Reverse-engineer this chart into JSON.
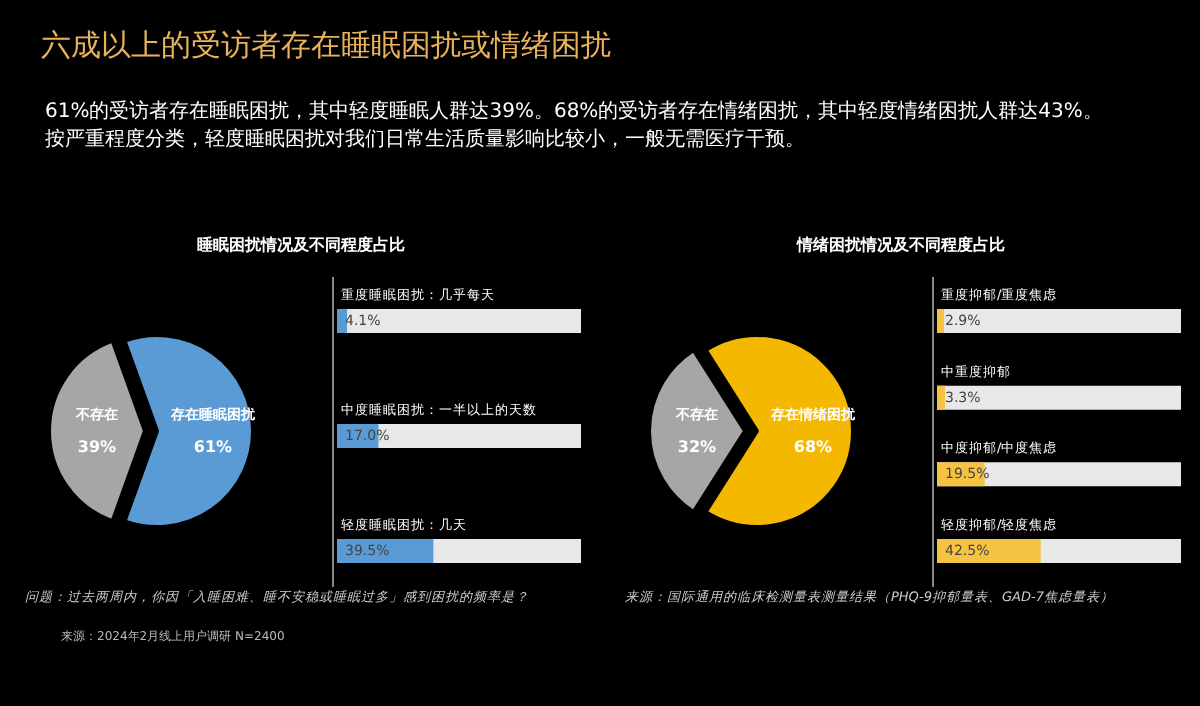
{
  "chart_data": [
    {
      "type": "other",
      "title": "六成以上的受访者存在睡眠困扰或情绪困扰",
      "subtitle": "61%的受访者存在睡眠困扰，其中轻度睡眠人群达39%。68%的受访者存在情绪困扰，其中轻度情绪困扰人群达43%。按严重程度分类，轻度睡眠困扰对我们日常生活质量影响比较小，一般无需医疗干预。",
      "annotations": [
        "来源：2024年2月线上用户调研 N=2400"
      ]
    },
    {
      "type": "pie",
      "title": "睡眠困扰情况及不同程度占比",
      "categories": [
        "不存在",
        "存在睡眠困扰"
      ],
      "values": [
        39,
        61
      ],
      "colors": [
        "#a6a6a6",
        "#5b9bd5"
      ],
      "value_labels": [
        "39%",
        "61%"
      ],
      "annotations": [
        "问题：过去两周内，你因「入睡困难、睡不安稳或睡眠过多」感到困扰的频率是？"
      ]
    },
    {
      "type": "bar",
      "orientation": "horizontal",
      "categories": [
        "重度睡眠困扰：几乎每天",
        "中度睡眠困扰：一半以上的天数",
        "轻度睡眠困扰：几天"
      ],
      "values": [
        4.1,
        17.0,
        39.5
      ],
      "color": "#5b9bd5",
      "value_labels": [
        "4.1%",
        "17.0%",
        "39.5%"
      ],
      "xlim": [
        0,
        100
      ],
      "tick_labels": false
    },
    {
      "type": "pie",
      "title": "情绪困扰情况及不同程度占比",
      "categories": [
        "不存在",
        "存在情绪困扰"
      ],
      "values": [
        32,
        68
      ],
      "colors": [
        "#a6a6a6",
        "#f5b800"
      ],
      "value_labels": [
        "32%",
        "68%"
      ],
      "annotations": [
        "来源：国际通用的临床检测量表测量结果（PHQ-9抑郁量表、GAD-7焦虑量表）"
      ]
    },
    {
      "type": "bar",
      "orientation": "horizontal",
      "categories": [
        "重度抑郁/重度焦虑",
        "中重度抑郁",
        "中度抑郁/中度焦虑",
        "轻度抑郁/轻度焦虑"
      ],
      "values": [
        2.9,
        3.3,
        19.5,
        42.5
      ],
      "color": "#f5c242",
      "value_labels": [
        "2.9%",
        "3.3%",
        "19.5%",
        "42.5%"
      ],
      "xlim": [
        0,
        100
      ],
      "tick_labels": false
    }
  ]
}
